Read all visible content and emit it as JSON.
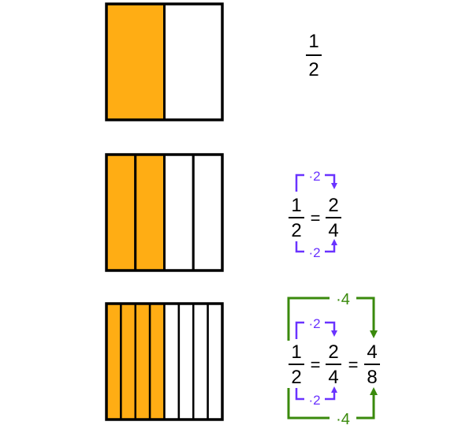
{
  "colors": {
    "fill": "#FFAD14",
    "empty": "#FFFFFF",
    "outline": "#000000",
    "purple": "#6A33FF",
    "green": "#3A8A0C"
  },
  "rows": [
    {
      "parts": 2,
      "shaded": 1,
      "fractions": [
        {
          "num": "1",
          "den": "2"
        }
      ],
      "equals": []
    },
    {
      "parts": 4,
      "shaded": 2,
      "fractions": [
        {
          "num": "1",
          "den": "2"
        },
        {
          "num": "2",
          "den": "4"
        }
      ],
      "equals": [
        "="
      ],
      "multipliers": {
        "purple": "·2"
      }
    },
    {
      "parts": 8,
      "shaded": 4,
      "fractions": [
        {
          "num": "1",
          "den": "2"
        },
        {
          "num": "2",
          "den": "4"
        },
        {
          "num": "4",
          "den": "8"
        }
      ],
      "equals": [
        "=",
        "="
      ],
      "multipliers": {
        "purple": "·2",
        "green": "·4"
      }
    }
  ]
}
